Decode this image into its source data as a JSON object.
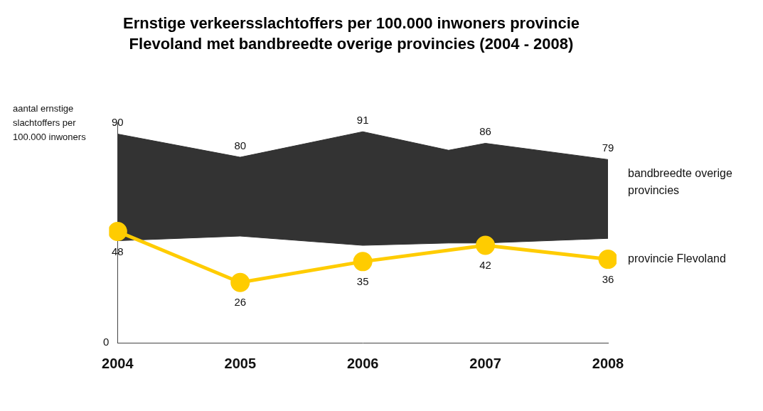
{
  "chart_data": {
    "type": "line",
    "title": [
      "Ernstige verkeersslachtoffers per 100.000 inwoners provincie",
      "Flevoland met bandbreedte overige provincies (2004 - 2008)"
    ],
    "y_label": "aantal ernstige slachtoffers per 100.000 inwoners",
    "xlim": [
      2004,
      2008
    ],
    "xticks": [
      2004,
      2005,
      2006,
      2007,
      2008
    ],
    "ylim": [
      0,
      95
    ],
    "yticks": [
      0
    ],
    "grid": false,
    "data_labels": true,
    "series": [
      {
        "name": "bandbreedte overige provincies",
        "type": "band",
        "color": "#333333",
        "x": [
          2004,
          2005,
          2006,
          2006.7,
          2007,
          2008
        ],
        "upper": [
          90,
          80,
          91,
          83,
          86,
          79
        ],
        "value_labels": [
          "90",
          "80",
          "91",
          null,
          "86",
          "79"
        ],
        "lower": [
          44,
          46,
          42,
          43,
          43,
          45
        ]
      },
      {
        "name": "provincie Flevoland",
        "type": "line",
        "color": "#ffcc00",
        "marker": "circle",
        "x": [
          2004,
          2005,
          2006,
          2007,
          2008
        ],
        "values": [
          48,
          26,
          35,
          42,
          36
        ]
      }
    ]
  }
}
